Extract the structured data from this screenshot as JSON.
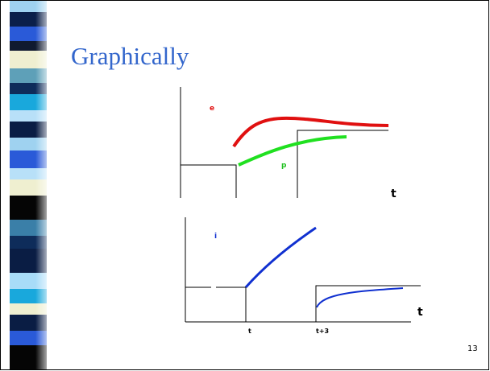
{
  "slide": {
    "title": "Graphically",
    "page_number": "13"
  },
  "top_graph": {
    "curve_labels": [
      "e",
      "p"
    ],
    "axis_label": "t"
  },
  "bottom_graph": {
    "curve_label": "i",
    "axis_label": "t",
    "time_marks": [
      "t",
      "t+3"
    ]
  }
}
